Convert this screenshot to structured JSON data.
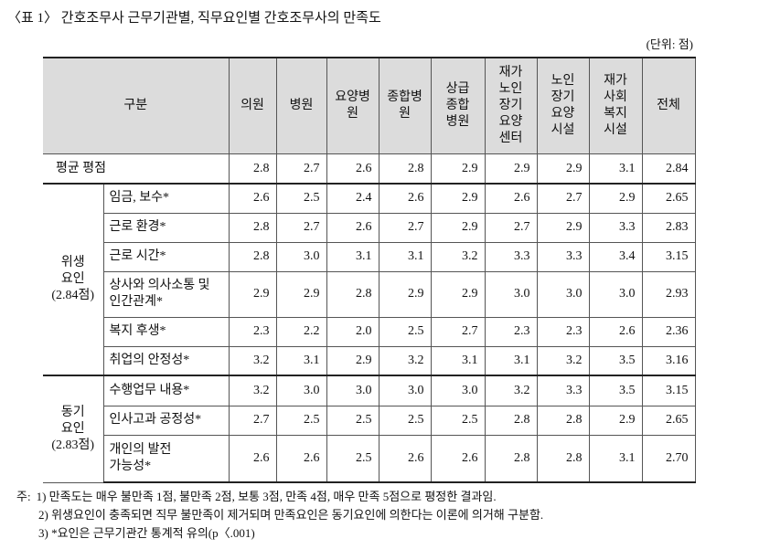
{
  "caption": "〈표 1〉 간호조무사 근무기관별, 직무요인별 간호조무사의 만족도",
  "unit": "(단위: 점)",
  "table": {
    "header": {
      "label": "구분",
      "columns": [
        "의원",
        "병원",
        "요양병\n원",
        "종합병\n원",
        "상급\n종합\n병원",
        "재가\n노인\n장기\n요양\n센터",
        "노인\n장기\n요양\n시설",
        "재가\n사회\n복지\n시설",
        "전체"
      ]
    },
    "average": {
      "label": "평균 평점",
      "values": [
        "2.8",
        "2.7",
        "2.6",
        "2.8",
        "2.9",
        "2.9",
        "2.9",
        "3.1",
        "2.84"
      ]
    },
    "groups": [
      {
        "label": "위생\n요인\n(2.84점)",
        "rows": [
          {
            "label": "임금, 보수*",
            "values": [
              "2.6",
              "2.5",
              "2.4",
              "2.6",
              "2.9",
              "2.6",
              "2.7",
              "2.9",
              "2.65"
            ]
          },
          {
            "label": "근로 환경*",
            "values": [
              "2.8",
              "2.7",
              "2.6",
              "2.7",
              "2.9",
              "2.7",
              "2.9",
              "3.3",
              "2.83"
            ]
          },
          {
            "label": "근로 시간*",
            "values": [
              "2.8",
              "3.0",
              "3.1",
              "3.1",
              "3.2",
              "3.3",
              "3.3",
              "3.4",
              "3.15"
            ]
          },
          {
            "label": "상사와 의사소통 및\n인간관계*",
            "values": [
              "2.9",
              "2.9",
              "2.8",
              "2.9",
              "2.9",
              "3.0",
              "3.0",
              "3.0",
              "2.93"
            ]
          },
          {
            "label": "복지 후생*",
            "values": [
              "2.3",
              "2.2",
              "2.0",
              "2.5",
              "2.7",
              "2.3",
              "2.3",
              "2.6",
              "2.36"
            ]
          },
          {
            "label": "취업의 안정성*",
            "values": [
              "3.2",
              "3.1",
              "2.9",
              "3.2",
              "3.1",
              "3.1",
              "3.2",
              "3.5",
              "3.16"
            ]
          }
        ]
      },
      {
        "label": "동기\n요인\n(2.83점)",
        "rows": [
          {
            "label": "수행업무 내용*",
            "values": [
              "3.2",
              "3.0",
              "3.0",
              "3.0",
              "3.0",
              "3.2",
              "3.3",
              "3.5",
              "3.15"
            ]
          },
          {
            "label": "인사고과 공정성*",
            "values": [
              "2.7",
              "2.5",
              "2.5",
              "2.5",
              "2.5",
              "2.8",
              "2.8",
              "2.9",
              "2.65"
            ]
          },
          {
            "label": "개인의 발전\n가능성*",
            "values": [
              "2.6",
              "2.6",
              "2.5",
              "2.6",
              "2.6",
              "2.8",
              "2.8",
              "3.1",
              "2.70"
            ]
          }
        ]
      }
    ]
  },
  "notes_prefix": "주:",
  "notes": [
    "1) 만족도는 매우 불만족 1점, 불만족 2점, 보통 3점, 만족 4점, 매우 만족 5점으로 평정한 결과임.",
    "2) 위생요인이 충족되면 직무 불만족이 제거되며 만족요인은 동기요인에 의한다는 이론에 의거해 구분함.",
    "3)  *요인은 근무기관간 통계적 유의(p〈.001)"
  ]
}
